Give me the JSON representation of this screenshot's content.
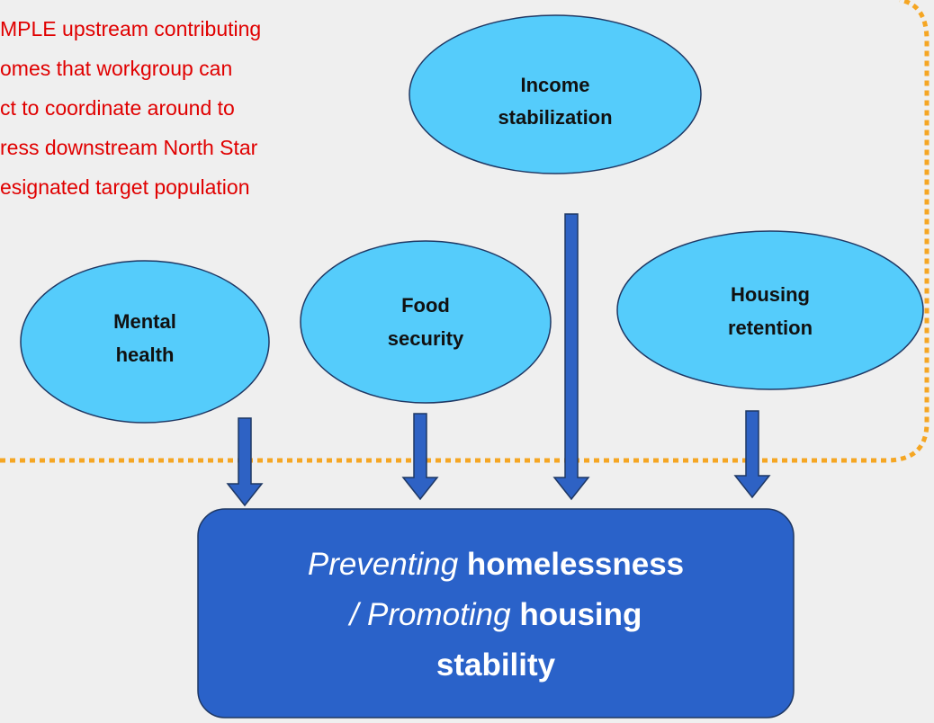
{
  "note_lines": [
    "MPLE upstream contributing",
    "omes that workgroup can",
    "ct to coordinate around to",
    "ress downstream North Star",
    "esignated target population"
  ],
  "nodes": [
    {
      "lines": [
        "Income",
        "stabilization"
      ]
    },
    {
      "lines": [
        "Mental",
        "health"
      ]
    },
    {
      "lines": [
        "Food",
        "security"
      ]
    },
    {
      "lines": [
        "Housing",
        "retention"
      ]
    }
  ],
  "outcome": {
    "line1": [
      "Preventing",
      "homelessness"
    ],
    "line2": [
      "/",
      "Promoting",
      "housing"
    ],
    "line3": [
      "stability"
    ]
  }
}
